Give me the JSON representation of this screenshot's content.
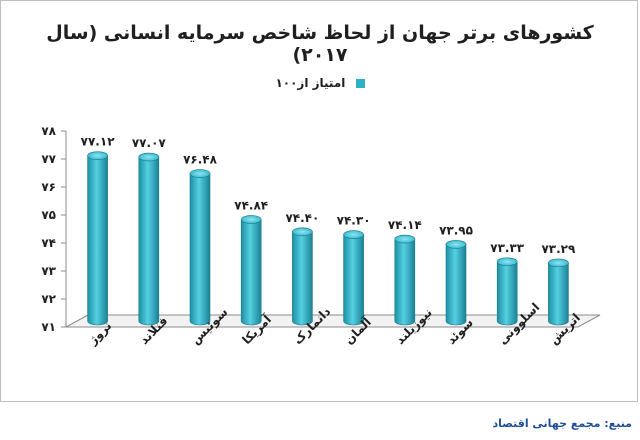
{
  "chart_data": {
    "type": "bar",
    "title": "کشورهای برتر جهان از لحاظ شاخص سرمایه انسانی (سال ۲۰۱۷)",
    "series": [
      {
        "name": "امتیاز از۱۰۰",
        "values": [
          77.12,
          77.07,
          76.48,
          74.84,
          74.4,
          74.3,
          74.14,
          73.95,
          73.33,
          73.29
        ],
        "labels": [
          "۷۷.۱۲",
          "۷۷.۰۷",
          "۷۶.۴۸",
          "۷۴.۸۴",
          "۷۴.۴۰",
          "۷۴.۳۰",
          "۷۴.۱۴",
          "۷۳.۹۵",
          "۷۳.۳۳",
          "۷۳.۲۹"
        ]
      }
    ],
    "categories": [
      "نروژ",
      "فنلاند",
      "سوئیس",
      "آمریکا",
      "دانمارک",
      "آلمان",
      "نیوزیلند",
      "سوئد",
      "اسلوونی",
      "اتریش"
    ],
    "ylim": [
      71,
      78
    ],
    "yticks": [
      71,
      72,
      73,
      74,
      75,
      76,
      77,
      78
    ],
    "ytick_labels": [
      "۷۱",
      "۷۲",
      "۷۳",
      "۷۴",
      "۷۵",
      "۷۶",
      "۷۷",
      "۷۸"
    ],
    "legend_position": "top",
    "grid": false,
    "bar_color": "#2bb2c8"
  },
  "source": "منبع: مجمع جهانی اقتصاد"
}
